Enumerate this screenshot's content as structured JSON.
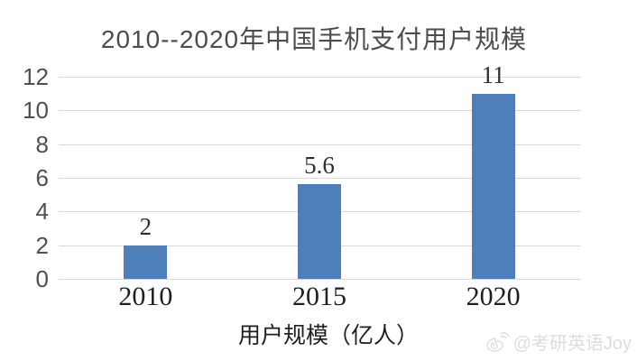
{
  "chart": {
    "title": "2010--2020年中国手机支付用户规模",
    "x_axis_title": "用户规模（亿人）",
    "watermark": {
      "icon": "weibo-logo",
      "text": "@考研英语Joy"
    },
    "colors": {
      "bar": "#4e7fba",
      "gridline": "#d9d9d9",
      "watermark": "#dedddd"
    }
  },
  "chart_data": {
    "type": "bar",
    "title": "2010--2020年中国手机支付用户规模",
    "categories": [
      "2010",
      "2015",
      "2020"
    ],
    "values": [
      2,
      5.6,
      11
    ],
    "data_labels": [
      "2",
      "5.6",
      "11"
    ],
    "xlabel": "用户规模（亿人）",
    "ylabel": "",
    "ylim": [
      0,
      12
    ],
    "yticks": [
      0,
      2,
      4,
      6,
      8,
      10,
      12
    ],
    "grid": true,
    "legend": false,
    "bar_color": "#4e7fba"
  }
}
